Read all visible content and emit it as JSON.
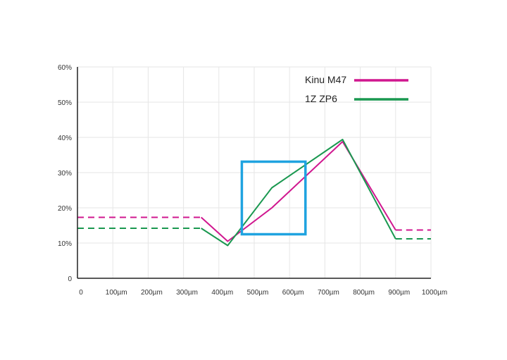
{
  "chart_data": {
    "type": "line",
    "xlabel": "",
    "ylabel": "",
    "xlim": [
      0,
      1000
    ],
    "ylim": [
      0,
      60
    ],
    "x_ticks": [
      0,
      100,
      200,
      300,
      400,
      500,
      600,
      700,
      800,
      900,
      1000
    ],
    "x_tick_labels": [
      "0",
      "100µm",
      "200µm",
      "300µm",
      "400µm",
      "500µm",
      "600µm",
      "700µm",
      "800µm",
      "900µm",
      "1000µm"
    ],
    "y_ticks": [
      0,
      10,
      20,
      30,
      40,
      50,
      60
    ],
    "y_tick_labels": [
      "0",
      "10%",
      "20%",
      "30%",
      "40%",
      "50%",
      "60%"
    ],
    "grid": true,
    "legend_position": "top-right",
    "series": [
      {
        "name": "Kinu M47",
        "color": "#d0178f",
        "dashed_segments": [
          [
            [
              0,
              17.3
            ],
            [
              350,
              17.3
            ]
          ],
          [
            [
              900,
              13.7
            ],
            [
              1000,
              13.7
            ]
          ]
        ],
        "points": [
          [
            350,
            17.3
          ],
          [
            425,
            10.5
          ],
          [
            550,
            20
          ],
          [
            750,
            38.8
          ],
          [
            900,
            13.7
          ]
        ]
      },
      {
        "name": "1Z ZP6",
        "color": "#1a9850",
        "dashed_segments": [
          [
            [
              0,
              14.2
            ],
            [
              350,
              14.2
            ]
          ],
          [
            [
              900,
              11.2
            ],
            [
              1000,
              11.2
            ]
          ]
        ],
        "points": [
          [
            350,
            14.2
          ],
          [
            425,
            9.3
          ],
          [
            550,
            25.7
          ],
          [
            750,
            39.4
          ],
          [
            900,
            11.2
          ]
        ]
      }
    ],
    "annotations": [
      {
        "type": "rectangle",
        "color": "#1fa3e0",
        "x_range": [
          465,
          645
        ],
        "y_range": [
          12.5,
          33.1
        ]
      }
    ]
  }
}
